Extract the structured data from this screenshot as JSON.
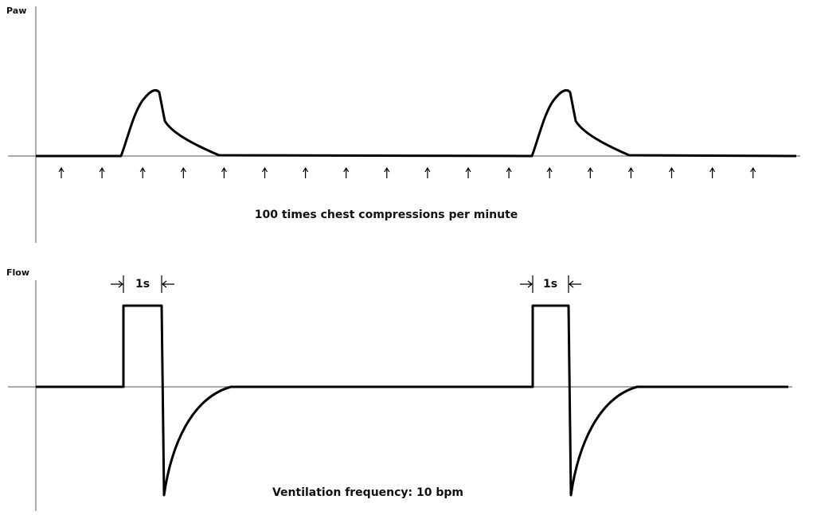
{
  "pressure_panel": {
    "label": "Paw",
    "caption": "100 times chest compressions per minute"
  },
  "flow_panel": {
    "label": "Flow",
    "caption": "Ventilation frequency: 10 bpm",
    "durations": [
      "1s",
      "1s"
    ]
  }
}
